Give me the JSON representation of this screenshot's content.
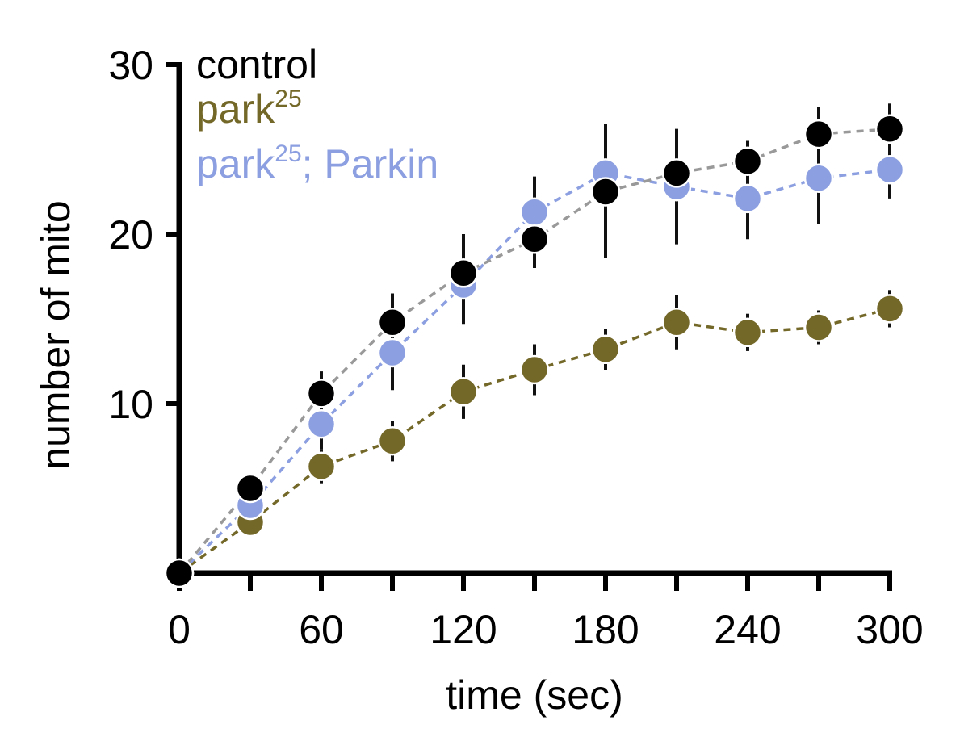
{
  "chart_data": {
    "type": "line",
    "xlabel": "time (sec)",
    "ylabel": "number of mito",
    "xlim": [
      0,
      300
    ],
    "ylim": [
      0,
      30
    ],
    "xticks": [
      0,
      60,
      120,
      180,
      240,
      300
    ],
    "yticks": [
      10,
      20,
      30
    ],
    "x": [
      0,
      30,
      60,
      90,
      120,
      150,
      180,
      210,
      240,
      270,
      300
    ],
    "grid": false,
    "legend": "top-left",
    "series": [
      {
        "name": "control",
        "name_base": "control",
        "name_sup": "",
        "name_suffix": "",
        "color": "#000000",
        "line_color": "#999999",
        "values": [
          0,
          5.0,
          10.6,
          14.8,
          17.7,
          19.7,
          22.5,
          23.6,
          24.3,
          25.9,
          26.2
        ],
        "errors": [
          0,
          0.6,
          1.3,
          1.7,
          2.3,
          1.7,
          3.9,
          2.6,
          1.2,
          1.6,
          1.5
        ]
      },
      {
        "name": "park25",
        "name_base": "park",
        "name_sup": "25",
        "name_suffix": "",
        "color": "#746829",
        "line_color": "#746829",
        "values": [
          0,
          3.0,
          6.3,
          7.8,
          10.7,
          12.0,
          13.2,
          14.8,
          14.2,
          14.5,
          15.6
        ],
        "errors": [
          0,
          0.4,
          1.0,
          1.2,
          1.6,
          1.5,
          1.2,
          1.6,
          1.1,
          1.0,
          1.1
        ]
      },
      {
        "name": "park25; Parkin",
        "name_base": "park",
        "name_sup": "25",
        "name_suffix": "; Parkin",
        "color": "#8c9fe0",
        "line_color": "#8c9fe0",
        "values": [
          0,
          4.0,
          8.8,
          13.0,
          17.0,
          21.3,
          23.6,
          22.8,
          22.1,
          23.3,
          23.8
        ],
        "errors": [
          0,
          0.5,
          1.5,
          2.2,
          2.3,
          2.1,
          2.9,
          3.4,
          2.4,
          2.7,
          1.7
        ]
      }
    ]
  }
}
